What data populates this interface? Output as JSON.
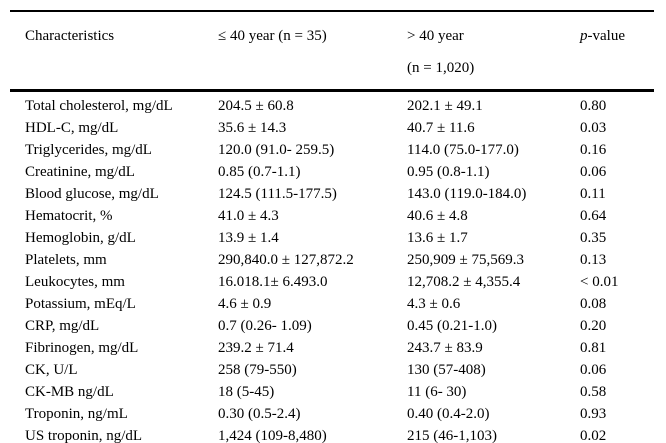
{
  "table": {
    "columns": [
      {
        "label": "Characteristics"
      },
      {
        "label": "≤ 40 year (n = 35)"
      },
      {
        "line1": "> 40 year",
        "line2": "(n = 1,020)"
      },
      {
        "label": "p-value"
      }
    ],
    "rows": [
      [
        "Total cholesterol, mg/dL",
        "204.5 ± 60.8",
        "202.1 ± 49.1",
        "0.80"
      ],
      [
        "HDL-C, mg/dL",
        "35.6 ± 14.3",
        "40.7 ± 11.6",
        "0.03"
      ],
      [
        "Triglycerides, mg/dL",
        "120.0 (91.0- 259.5)",
        "114.0 (75.0-177.0)",
        "0.16"
      ],
      [
        "Creatinine, mg/dL",
        "0.85 (0.7-1.1)",
        "0.95 (0.8-1.1)",
        "0.06"
      ],
      [
        "Blood glucose, mg/dL",
        "124.5 (111.5-177.5)",
        "143.0 (119.0-184.0)",
        "0.11"
      ],
      [
        "Hematocrit, %",
        "41.0 ± 4.3",
        "40.6 ± 4.8",
        "0.64"
      ],
      [
        "Hemoglobin, g/dL",
        "13.9 ± 1.4",
        "13.6 ± 1.7",
        "0.35"
      ],
      [
        "Platelets, mm",
        "290,840.0 ± 127,872.2",
        "250,909 ± 75,569.3",
        "0.13"
      ],
      [
        "Leukocytes, mm",
        "16.018.1± 6.493.0",
        "12,708.2 ± 4,355.4",
        "< 0.01"
      ],
      [
        "Potassium, mEq/L",
        "4.6 ± 0.9",
        "4.3 ± 0.6",
        "0.08"
      ],
      [
        "CRP, mg/dL",
        "0.7 (0.26- 1.09)",
        "0.45 (0.21-1.0)",
        "0.20"
      ],
      [
        "Fibrinogen, mg/dL",
        "239.2 ± 71.4",
        "243.7 ± 83.9",
        "0.81"
      ],
      [
        "CK, U/L",
        "258 (79-550)",
        "130 (57-408)",
        "0.06"
      ],
      [
        "CK-MB ng/dL",
        "18 (5-45)",
        "11 (6- 30)",
        "0.58"
      ],
      [
        "Troponin, ng/mL",
        "0.30 (0.5-2.4)",
        "0.40 (0.4-2.0)",
        "0.93"
      ],
      [
        "US troponin, ng/dL",
        "1,424 (109-8,480)",
        "215 (46-1,103)",
        "0.02"
      ]
    ]
  }
}
